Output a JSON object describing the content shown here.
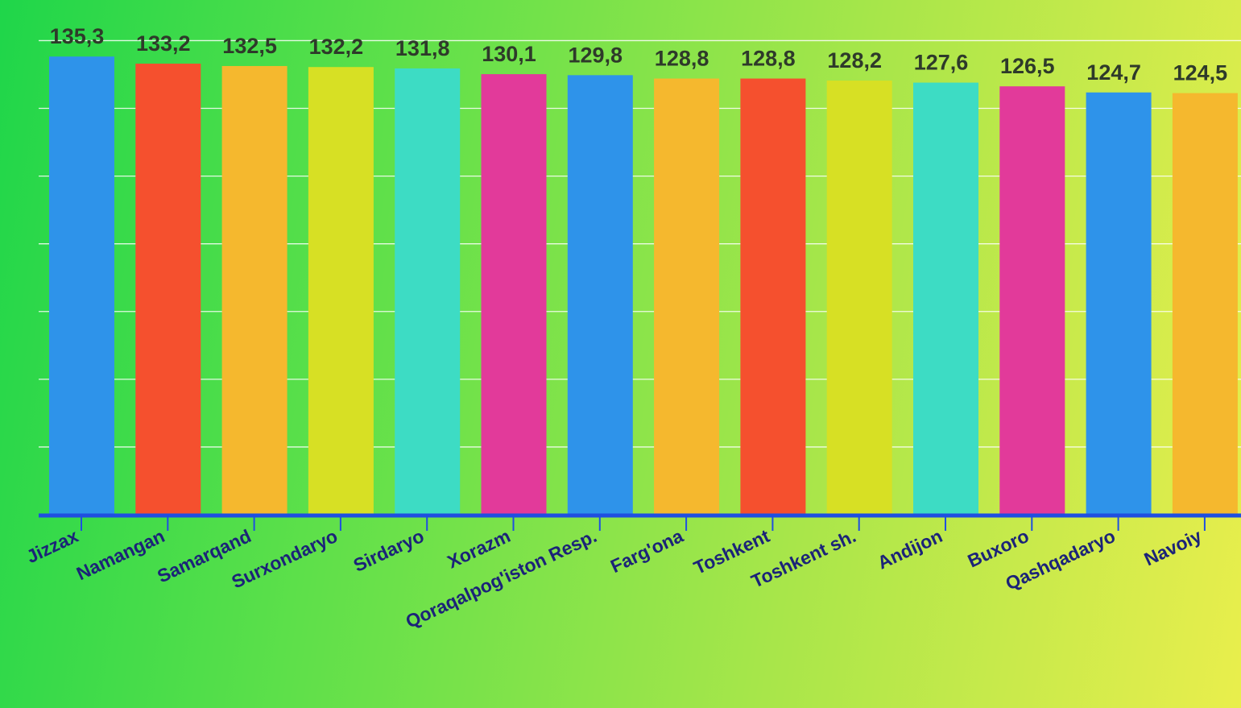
{
  "chart_data": {
    "type": "bar",
    "title": "",
    "xlabel": "",
    "ylabel": "",
    "categories": [
      "Jizzax",
      "Namangan",
      "Samarqand",
      "Surxondaryo",
      "Sirdaryo",
      "Xorazm",
      "Qoraqalpog'iston Resp.",
      "Farg'ona",
      "Toshkent",
      "Toshkent sh.",
      "Andijon",
      "Buxoro",
      "Qashqadaryo",
      "Navoiy"
    ],
    "values": [
      135.3,
      133.2,
      132.5,
      132.2,
      131.8,
      130.1,
      129.8,
      128.8,
      128.8,
      128.2,
      127.6,
      126.5,
      124.7,
      124.5
    ],
    "value_labels": [
      "135,3",
      "133,2",
      "132,5",
      "132,2",
      "131,8",
      "130,1",
      "129,8",
      "128,8",
      "128,8",
      "128,2",
      "127,6",
      "126,5",
      "124,7",
      "124,5"
    ],
    "bar_colors": [
      "#2e93ea",
      "#f5502e",
      "#f5b82e",
      "#d7e024",
      "#3ddcc4",
      "#e23a9a",
      "#2e93ea",
      "#f5b82e",
      "#f5502e",
      "#d7e024",
      "#3ddcc4",
      "#e23a9a",
      "#2e93ea",
      "#f5b82e"
    ],
    "ylim": [
      0,
      140
    ],
    "grid": true,
    "legend": "none",
    "colors": {
      "axis": "#1f4fe0",
      "grid": "#ffffff",
      "value_text": "#2e3a2a",
      "category_text": "#1b2378"
    }
  }
}
